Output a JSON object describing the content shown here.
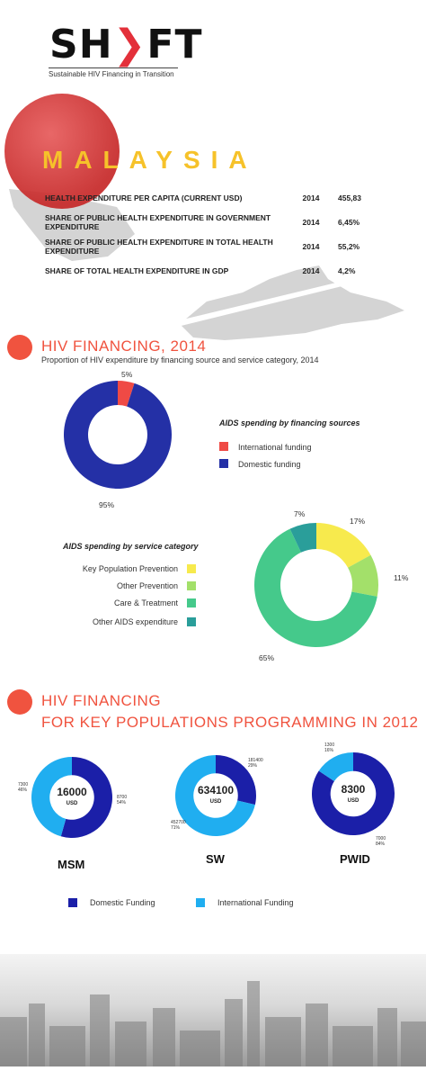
{
  "header": {
    "logo_left": "SH",
    "logo_right": "FT",
    "tagline": "Sustainable HIV Financing in Transition"
  },
  "country": {
    "name": "MALAYSIA",
    "indicators": [
      {
        "label": "HEALTH EXPENDITURE PER CAPITA (CURRENT USD)",
        "year": "2014",
        "value": "455,83"
      },
      {
        "label": "SHARE OF PUBLIC HEALTH EXPENDITURE IN GOVERNMENT EXPENDITURE",
        "year": "2014",
        "value": "6,45%"
      },
      {
        "label": "SHARE OF PUBLIC HEALTH EXPENDITURE IN TOTAL HEALTH EXPENDITURE",
        "year": "2014",
        "value": "55,2%"
      },
      {
        "label": "SHARE OF TOTAL HEALTH EXPENDITURE IN GDP",
        "year": "2014",
        "value": "4,2%"
      }
    ]
  },
  "section1": {
    "title": "HIV FINANCING, 2014",
    "subtitle": "Proportion of HIV expenditure by financing source and service category, 2014"
  },
  "section2": {
    "title_line1": "HIV FINANCING",
    "title_line2": "FOR KEY POPULATIONS PROGRAMMING IN 2012"
  },
  "colors": {
    "accent": "#f0533f",
    "domestic": "#2430a6",
    "international_red": "#ef4a45",
    "yellow": "#f7ea4d",
    "lightgreen": "#a3e06a",
    "green": "#45c98b",
    "teal": "#2a9e9a",
    "kp_domestic": "#1b1fa8",
    "kp_international": "#20aef0"
  },
  "chart_data": [
    {
      "type": "pie",
      "title": "AIDS spending by financing sources",
      "categories": [
        "International funding",
        "Domestic funding"
      ],
      "values": [
        5,
        95
      ],
      "data_labels": [
        "5%",
        "95%"
      ]
    },
    {
      "type": "pie",
      "title": "AIDS spending by service category",
      "categories": [
        "Key Population Prevention",
        "Other Prevention",
        "Care & Treatment",
        "Other AIDS expenditure"
      ],
      "values": [
        17,
        11,
        65,
        7
      ],
      "data_labels": [
        "17%",
        "11%",
        "65%",
        "7%"
      ]
    },
    {
      "type": "pie",
      "title": "MSM",
      "total": "16000",
      "unit": "USD",
      "categories": [
        "Domestic Funding",
        "International Funding"
      ],
      "values": [
        8700,
        7300
      ],
      "data_labels": [
        [
          "8700",
          "54%"
        ],
        [
          "7300",
          "46%"
        ]
      ]
    },
    {
      "type": "pie",
      "title": "SW",
      "total": "634100",
      "unit": "USD",
      "categories": [
        "Domestic Funding",
        "International Funding"
      ],
      "values": [
        181400,
        452700
      ],
      "data_labels": [
        [
          "181400",
          "29%"
        ],
        [
          "452700",
          "71%"
        ]
      ]
    },
    {
      "type": "pie",
      "title": "PWID",
      "total": "8300",
      "unit": "USD",
      "categories": [
        "Domestic Funding",
        "International Funding"
      ],
      "values": [
        7000,
        1300
      ],
      "data_labels": [
        [
          "7000",
          "84%"
        ],
        [
          "1300",
          "16%"
        ]
      ]
    }
  ],
  "legend_kp": {
    "domestic": "Domestic Funding",
    "international": "International Funding"
  }
}
